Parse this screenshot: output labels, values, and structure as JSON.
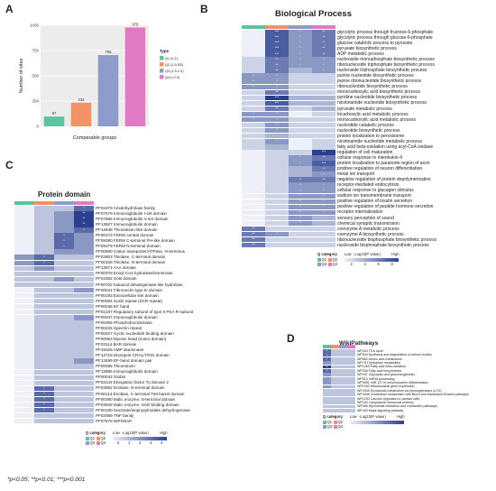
{
  "figure": {
    "panels": {
      "A": "A",
      "B": "B",
      "C": "C",
      "D": "D"
    },
    "footer": "*p<0.05; **p<0.01; ***p<0.001"
  },
  "colors": {
    "q1": "#5ec2a0",
    "q2": "#f39264",
    "q3": "#8e9ccc",
    "q4": "#e07ac4",
    "heat_low": "#eef0f8",
    "heat_high": "#2a3f8f"
  },
  "chart_data": [
    {
      "type": "bar",
      "panel": "A",
      "categories": [
        "Q1",
        "Q2",
        "Q3",
        "Q4"
      ],
      "values": [
        97,
        234,
        705,
        978
      ],
      "ylabel": "Number of sites",
      "xlabel": "Comparable groups",
      "ylim": [
        0,
        1000
      ],
      "yticks": [
        0,
        250,
        500,
        750,
        1000
      ],
      "legend": {
        "title": "Type",
        "entries": [
          "Q1 (0-1)",
          "Q2 (1.5-SE)",
          "Q3 (1.5-2.0)",
          "Q4 (>2.0)"
        ]
      }
    },
    {
      "type": "heatmap",
      "panel": "B",
      "title": "Biological Process",
      "columns": [
        "Q1",
        "Q2",
        "Q3",
        "Q4"
      ],
      "rows": [
        "glycolytic process through fructose-6-phosphate",
        "glycolytic process through glucose-6-phosphate",
        "glucose catabolic process to pyruvate",
        "pyruvate biosynthetic process",
        "ADP metabolic process",
        "nucleoside monophosphate biosynthetic process",
        "ribonucleoside triphosphate biosynthetic process",
        "nucleoside triphosphate biosynthetic process",
        "purine nucleotide biosynthetic process",
        "purine ribonucleotide biosynthetic process",
        "ribonucleotide biosynthetic process",
        "monocarboxylic acid biosynthetic process",
        "pyridine nucleotide biosynthetic process",
        "nicotinamide nucleotide biosynthetic process",
        "pyruvate metabolic process",
        "tricarboxylic acid metabolic process",
        "monocarboxylic acid metabolic process",
        "nucleotide catabolic process",
        "nucleotide biosynthetic process",
        "protein localization to peroxisome",
        "nicotinamide nucleotide metabolic process",
        "fatty acid beta-oxidation using acyl-CoA oxidase",
        "regulation of cell maturation",
        "cellular response to interleukin-4",
        "protein localization to paranode region of axon",
        "positive regulation of neuron differentiation",
        "metal ion transport",
        "negative regulation of protein depolymerization",
        "receptor-mediated endocytosis",
        "cellular response to glucagon stimulus",
        "sodium ion transmembrane transport",
        "positive regulation of insulin secretion",
        "positive regulation of peptide hormone secretion",
        "receptor internalization",
        "sensory perception of sound",
        "chemical synaptic transmission",
        "coenzyme A metabolic process",
        "coenzyme A biosynthetic process",
        "ribonucleoside bisphosphate biosynthetic process",
        "nucleoside bisphosphate biosynthetic process"
      ],
      "values": [
        [
          0,
          5,
          3,
          4
        ],
        [
          0,
          5,
          3,
          4
        ],
        [
          0,
          5,
          3,
          4
        ],
        [
          0,
          5,
          3,
          4
        ],
        [
          0,
          5,
          3,
          4
        ],
        [
          1,
          4,
          3,
          3
        ],
        [
          1,
          4,
          3,
          3
        ],
        [
          1,
          4,
          2,
          3
        ],
        [
          3,
          3,
          1,
          1
        ],
        [
          3,
          3,
          1,
          1
        ],
        [
          3,
          3,
          1,
          1
        ],
        [
          1,
          4,
          1,
          1
        ],
        [
          1,
          6,
          2,
          2
        ],
        [
          1,
          5,
          2,
          2
        ],
        [
          1,
          4,
          1,
          2
        ],
        [
          3,
          3,
          0,
          1
        ],
        [
          3,
          3,
          1,
          1
        ],
        [
          1,
          3,
          1,
          1
        ],
        [
          1,
          3,
          1,
          1
        ],
        [
          1,
          2,
          1,
          1
        ],
        [
          1,
          3,
          0,
          1
        ],
        [
          1,
          2,
          0,
          1
        ],
        [
          0,
          1,
          1,
          6
        ],
        [
          0,
          1,
          3,
          4
        ],
        [
          0,
          1,
          3,
          5
        ],
        [
          0,
          1,
          2,
          4
        ],
        [
          0,
          1,
          2,
          3
        ],
        [
          0,
          1,
          4,
          4
        ],
        [
          0,
          1,
          3,
          3
        ],
        [
          0,
          1,
          3,
          3
        ],
        [
          0,
          1,
          3,
          3
        ],
        [
          0,
          1,
          3,
          3
        ],
        [
          0,
          1,
          3,
          3
        ],
        [
          0,
          1,
          3,
          3
        ],
        [
          0,
          1,
          3,
          2
        ],
        [
          0,
          1,
          3,
          2
        ],
        [
          4,
          1,
          1,
          1
        ],
        [
          4,
          3,
          1,
          1
        ],
        [
          4,
          1,
          1,
          1
        ],
        [
          4,
          1,
          1,
          1
        ]
      ],
      "legend": {
        "category_title": "Q category",
        "scale_title": "-Log10(P value)",
        "low": "Low",
        "high": "High",
        "ticks": [
          "2",
          "4",
          "6",
          "8"
        ]
      }
    },
    {
      "type": "heatmap",
      "panel": "C",
      "title": "Protein domain",
      "columns": [
        "Q1",
        "Q2",
        "Q3",
        "Q4"
      ],
      "rows": [
        "PF01979 Amidohydrolase family",
        "PF07679 Immunoglobulin I-set domain",
        "PF07686 Immunoglobulin V-set domain",
        "PF13927 Immunoglobulin domain",
        "PF13848 Thioredoxin-like domain",
        "PF00373 FERM central domain",
        "PF09380 FERM C-terminal PH-like domain",
        "PF09379 FERM N-terminal domain",
        "PF00690 Cation transporter/ATPase, N-terminus",
        "PF02803 Thiolase, C-terminal domain",
        "PF00108 Thiolase, N-terminal domain",
        "PF13671 AAA domain",
        "PF00378 Enoyl-CoA hydratase/isomerase",
        "PF04382 SAB domain",
        "PF00702 haloacid dehalogenase-like hydrolase",
        "PF00041 Fibronectin type III domain",
        "PF00193 Extracellular link domain",
        "PF00084 Sushi repeat (SCR repeat)",
        "PF00036 EF hand",
        "PF02197 Regulatory subunit of type II PKA R-subunit",
        "PF00047 Immunoglobulin domain",
        "PF00365 Phosphofructokinase",
        "PF00435 Spectrin repeat",
        "PF00027 Cyclic nucleotide binding domain",
        "PF00063 Myosin head (motor domain)",
        "PF03114 BAR domain",
        "PF19326 AMP deaminase",
        "PF13716 Divergent CRAL/TRIO domain",
        "PF13499 EF-hand domain pair",
        "PF00085 Thioredoxin",
        "PF13895 Immunoglobulin domain",
        "PF00042 Globin",
        "PF03144 Elongation factor Tu domain 2",
        "PF03952 Enolase, N-terminal domain",
        "PF00113 Enolase, C-terminal TIM barrel domain",
        "PF00390 Malic enzyme, N-terminal domain",
        "PF03949 Malic enzyme, NAD binding domain",
        "PF00180 Isocitrate/isopropylmalate dehydrogenase",
        "PF02089 TNF family",
        "PF07978 NIPSNAP"
      ],
      "values": [
        [
          0,
          1,
          1,
          3
        ],
        [
          0,
          1,
          2,
          4
        ],
        [
          0,
          1,
          2,
          4
        ],
        [
          0,
          1,
          2,
          4
        ],
        [
          0,
          1,
          2,
          3
        ],
        [
          0,
          1,
          3,
          2
        ],
        [
          0,
          1,
          3,
          2
        ],
        [
          0,
          1,
          3,
          2
        ],
        [
          0,
          1,
          2,
          2
        ],
        [
          2,
          3,
          1,
          1
        ],
        [
          2,
          3,
          1,
          1
        ],
        [
          1,
          2,
          1,
          1
        ],
        [
          1,
          1,
          1,
          1
        ],
        [
          1,
          1,
          2,
          1
        ],
        [
          1,
          1,
          1,
          1
        ],
        [
          0,
          1,
          1,
          2
        ],
        [
          0,
          1,
          1,
          1
        ],
        [
          0,
          1,
          1,
          1
        ],
        [
          0,
          1,
          1,
          1
        ],
        [
          0,
          1,
          1,
          1
        ],
        [
          0,
          1,
          1,
          2
        ],
        [
          0,
          1,
          1,
          1
        ],
        [
          0,
          1,
          1,
          1
        ],
        [
          0,
          1,
          1,
          1
        ],
        [
          0,
          1,
          1,
          1
        ],
        [
          0,
          1,
          1,
          1
        ],
        [
          0,
          1,
          1,
          1
        ],
        [
          0,
          1,
          1,
          1
        ],
        [
          0,
          1,
          1,
          2
        ],
        [
          0,
          1,
          1,
          1
        ],
        [
          0,
          1,
          1,
          1
        ],
        [
          0,
          1,
          1,
          1
        ],
        [
          0,
          1,
          1,
          1
        ],
        [
          0,
          3,
          1,
          1
        ],
        [
          0,
          3,
          1,
          1
        ],
        [
          0,
          3,
          1,
          1
        ],
        [
          0,
          3,
          1,
          1
        ],
        [
          0,
          3,
          1,
          1
        ],
        [
          0,
          1,
          1,
          1
        ],
        [
          0,
          1,
          1,
          1
        ]
      ],
      "legend": {
        "category_title": "Q category",
        "scale_title": "-Log10(P value)",
        "low": "Low",
        "high": "High",
        "ticks": [
          "0",
          "1",
          "2",
          "3",
          "4"
        ]
      }
    },
    {
      "type": "heatmap",
      "panel": "D",
      "title": "WikiPathways",
      "columns": [
        "Q1",
        "Q2",
        "Q3",
        "Q4"
      ],
      "rows": [
        "WP434 TCA cycle",
        "WP543 Synthesis and degradation of ketone bodies",
        "WP662 Amino acid metabolism",
        "WP79 Tryptophan metabolism",
        "WP1269 Fatty acid beta-oxidation",
        "WP336 Fatty acid biosynthesis",
        "WP157 Glycolysis and gluconeogenesis",
        "WP310 mRNA processing",
        "WP3991 miR-127 in mesendoderm differentiation",
        "WP1263 Mitochondrial gene expression",
        "WP4346 Eicosanoid metabolism via lipooxygenases (LOX)",
        "WP4346 Cholesterol metabolism with Bloch and Kandutsch-Russell pathways",
        "WP1253 Calcium regulation in cardiac cells",
        "WP163 Cytoplasmic ribosomal proteins",
        "WP385 Myometrial relaxation and contraction pathways",
        "WP493 Mapk signaling pathway"
      ],
      "values": [
        [
          3,
          1,
          1,
          1
        ],
        [
          3,
          1,
          1,
          1
        ],
        [
          3,
          1,
          1,
          1
        ],
        [
          2,
          1,
          1,
          1
        ],
        [
          4,
          1,
          1,
          1
        ],
        [
          3,
          1,
          1,
          1
        ],
        [
          2,
          1,
          1,
          1
        ],
        [
          2,
          1,
          1,
          1
        ],
        [
          2,
          1,
          1,
          1
        ],
        [
          2,
          1,
          1,
          1
        ],
        [
          1,
          1,
          1,
          1
        ],
        [
          1,
          1,
          1,
          1
        ],
        [
          1,
          1,
          1,
          1
        ],
        [
          1,
          1,
          1,
          1
        ],
        [
          1,
          1,
          1,
          1
        ],
        [
          1,
          1,
          1,
          1
        ]
      ],
      "legend": {
        "category_title": "Q category",
        "scale_title": "-Log10(P value)",
        "low": "Low",
        "high": "High",
        "ticks": []
      }
    }
  ]
}
